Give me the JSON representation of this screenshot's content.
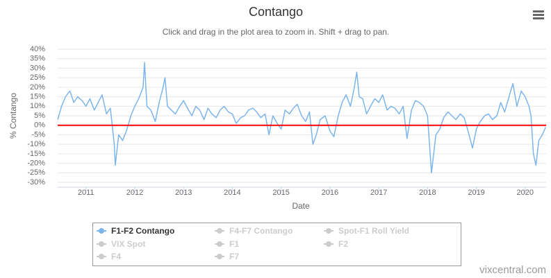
{
  "chart_data": {
    "type": "line",
    "title": "Contango",
    "subtitle": "Click and drag in the plot area to zoom in. Shift + drag to pan.",
    "x_label": "Date",
    "y_label": "% Contango",
    "credits": "vixcentral.com",
    "xlim": [
      2010.42,
      2020.43
    ],
    "xticks": [
      2011,
      2012,
      2013,
      2014,
      2015,
      2016,
      2017,
      2018,
      2019,
      2020
    ],
    "ylim": [
      -30,
      40
    ],
    "yticks": [
      {
        "value": -30,
        "label": "-30%"
      },
      {
        "value": -25,
        "label": "-25%"
      },
      {
        "value": -20,
        "label": "-20%"
      },
      {
        "value": -15,
        "label": "-15%"
      },
      {
        "value": -10,
        "label": "-10%"
      },
      {
        "value": -5,
        "label": "-5%"
      },
      {
        "value": 0,
        "label": "0%"
      },
      {
        "value": 5,
        "label": "5%"
      },
      {
        "value": 10,
        "label": "10%"
      },
      {
        "value": 15,
        "label": "15%"
      },
      {
        "value": 20,
        "label": "20%"
      },
      {
        "value": 25,
        "label": "25%"
      },
      {
        "value": 30,
        "label": "30%"
      },
      {
        "value": 35,
        "label": "35%"
      },
      {
        "value": 40,
        "label": "40%"
      }
    ],
    "grid": true,
    "zero_line_color": "#ff0000",
    "x": [
      2010.42,
      2010.5,
      2010.58,
      2010.67,
      2010.75,
      2010.83,
      2010.92,
      2011.0,
      2011.08,
      2011.17,
      2011.25,
      2011.33,
      2011.42,
      2011.5,
      2011.58,
      2011.6,
      2011.67,
      2011.75,
      2011.83,
      2011.92,
      2012.0,
      2012.08,
      2012.17,
      2012.2,
      2012.25,
      2012.33,
      2012.42,
      2012.5,
      2012.58,
      2012.62,
      2012.67,
      2012.75,
      2012.83,
      2012.92,
      2013.0,
      2013.08,
      2013.17,
      2013.25,
      2013.33,
      2013.42,
      2013.5,
      2013.58,
      2013.67,
      2013.75,
      2013.83,
      2013.92,
      2014.0,
      2014.08,
      2014.17,
      2014.25,
      2014.33,
      2014.42,
      2014.5,
      2014.58,
      2014.67,
      2014.75,
      2014.83,
      2014.92,
      2015.0,
      2015.08,
      2015.17,
      2015.25,
      2015.33,
      2015.42,
      2015.5,
      2015.58,
      2015.65,
      2015.72,
      2015.8,
      2015.9,
      2016.0,
      2016.08,
      2016.17,
      2016.25,
      2016.33,
      2016.42,
      2016.5,
      2016.55,
      2016.6,
      2016.67,
      2016.75,
      2016.83,
      2016.92,
      2017.0,
      2017.08,
      2017.17,
      2017.25,
      2017.33,
      2017.42,
      2017.5,
      2017.58,
      2017.67,
      2017.75,
      2017.83,
      2017.92,
      2018.0,
      2018.08,
      2018.17,
      2018.25,
      2018.33,
      2018.42,
      2018.5,
      2018.58,
      2018.67,
      2018.75,
      2018.83,
      2018.92,
      2019.0,
      2019.08,
      2019.17,
      2019.25,
      2019.33,
      2019.42,
      2019.5,
      2019.58,
      2019.67,
      2019.75,
      2019.83,
      2019.92,
      2020.0,
      2020.08,
      2020.12,
      2020.17,
      2020.22,
      2020.28,
      2020.35,
      2020.42
    ],
    "series": [
      {
        "name": "F1-F2 Contango",
        "color": "#7cb5ec",
        "visible": true,
        "values": [
          3,
          10,
          15,
          18,
          12,
          15,
          13,
          10,
          14,
          8,
          12,
          16,
          6,
          9,
          -10,
          -21,
          -5,
          -8,
          -3,
          5,
          10,
          14,
          20,
          33,
          10,
          8,
          2,
          12,
          20,
          25,
          10,
          8,
          6,
          10,
          13,
          9,
          5,
          10,
          8,
          3,
          9,
          6,
          4,
          8,
          10,
          7,
          6,
          1,
          4,
          5,
          8,
          9,
          7,
          4,
          6,
          -5,
          5,
          1,
          -2,
          8,
          6,
          9,
          11,
          5,
          2,
          7,
          -10,
          -5,
          3,
          5,
          -3,
          -6,
          5,
          12,
          16,
          10,
          20,
          28,
          15,
          14,
          6,
          10,
          14,
          12,
          16,
          8,
          10,
          9,
          6,
          10,
          -7,
          8,
          13,
          12,
          10,
          5,
          -25,
          -5,
          -2,
          4,
          7,
          5,
          3,
          6,
          4,
          -3,
          -12,
          -2,
          2,
          5,
          6,
          3,
          5,
          12,
          7,
          15,
          22,
          10,
          18,
          15,
          10,
          5,
          -15,
          -21,
          -8,
          -5,
          -1
        ]
      },
      {
        "name": "F4-F7 Contango",
        "visible": false
      },
      {
        "name": "Spot-F1 Roll Yield",
        "visible": false
      },
      {
        "name": "VIX Spot",
        "visible": false
      },
      {
        "name": "F1",
        "visible": false
      },
      {
        "name": "F2",
        "visible": false
      },
      {
        "name": "F4",
        "visible": false
      },
      {
        "name": "F7",
        "visible": false
      }
    ]
  }
}
